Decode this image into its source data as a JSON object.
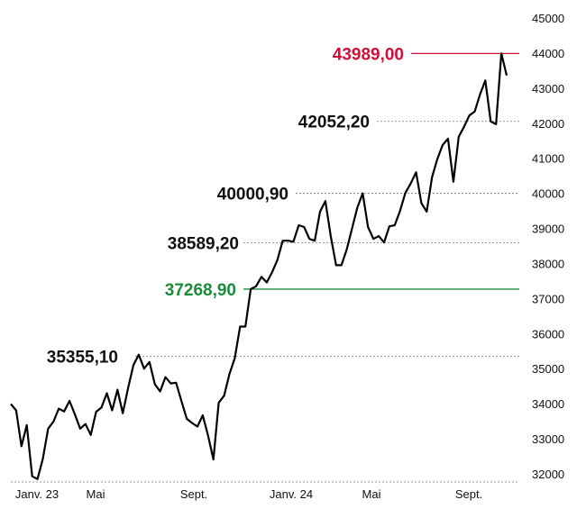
{
  "chart_data": {
    "type": "line",
    "title": "",
    "xlabel": "",
    "ylabel": "",
    "ylim": [
      31900,
      45000
    ],
    "y_ticks": [
      "45000",
      "44000",
      "43000",
      "42000",
      "41000",
      "40000",
      "39000",
      "38000",
      "37000",
      "36000",
      "35000",
      "34000",
      "33000",
      "32000"
    ],
    "x_ticks": [
      "Janv. 23",
      "Mai",
      "Sept.",
      "Janv. 24",
      "Mai",
      "Sept."
    ],
    "grid": false,
    "legend": "none",
    "colors": {
      "line": "#000000",
      "max": "#d0103a",
      "reference": "#1a8c3a",
      "level": "#7a7a7a"
    },
    "series": [
      {
        "values": [
          33990,
          33810,
          32790,
          33390,
          31930,
          31850,
          32430,
          33290,
          33490,
          33860,
          33780,
          34080,
          33700,
          33290,
          33420,
          33110,
          33770,
          33890,
          34300,
          33810,
          34400,
          33730,
          34450,
          35100,
          35400,
          35000,
          35190,
          34560,
          34350,
          34760,
          34580,
          34600,
          34080,
          33570,
          33450,
          33350,
          33670,
          33090,
          32410,
          34030,
          34230,
          34850,
          35300,
          36200,
          36200,
          37270,
          37350,
          37620,
          37460,
          37750,
          38100,
          38650,
          38650,
          38620,
          39090,
          39040,
          38700,
          38650,
          39480,
          39780,
          38790,
          37950,
          37950,
          38400,
          39000,
          39600,
          40000,
          39040,
          38700,
          38780,
          38600,
          39060,
          39090,
          39500,
          40010,
          40280,
          40600,
          39720,
          39480,
          40460,
          40980,
          41380,
          41560,
          40330,
          41610,
          41900,
          42220,
          42330,
          42820,
          43220,
          42050,
          41970,
          43990,
          43360
        ]
      }
    ],
    "annotations": [
      {
        "label": "43989,00",
        "value": 43989,
        "style": "max"
      },
      {
        "label": "42052,20",
        "value": 42052.2,
        "style": "level"
      },
      {
        "label": "40000,90",
        "value": 40000.9,
        "style": "level"
      },
      {
        "label": "38589,20",
        "value": 38589.2,
        "style": "level"
      },
      {
        "label": "37268,90",
        "value": 37268.9,
        "style": "reference"
      },
      {
        "label": "35355,10",
        "value": 35355.1,
        "style": "level"
      }
    ]
  }
}
